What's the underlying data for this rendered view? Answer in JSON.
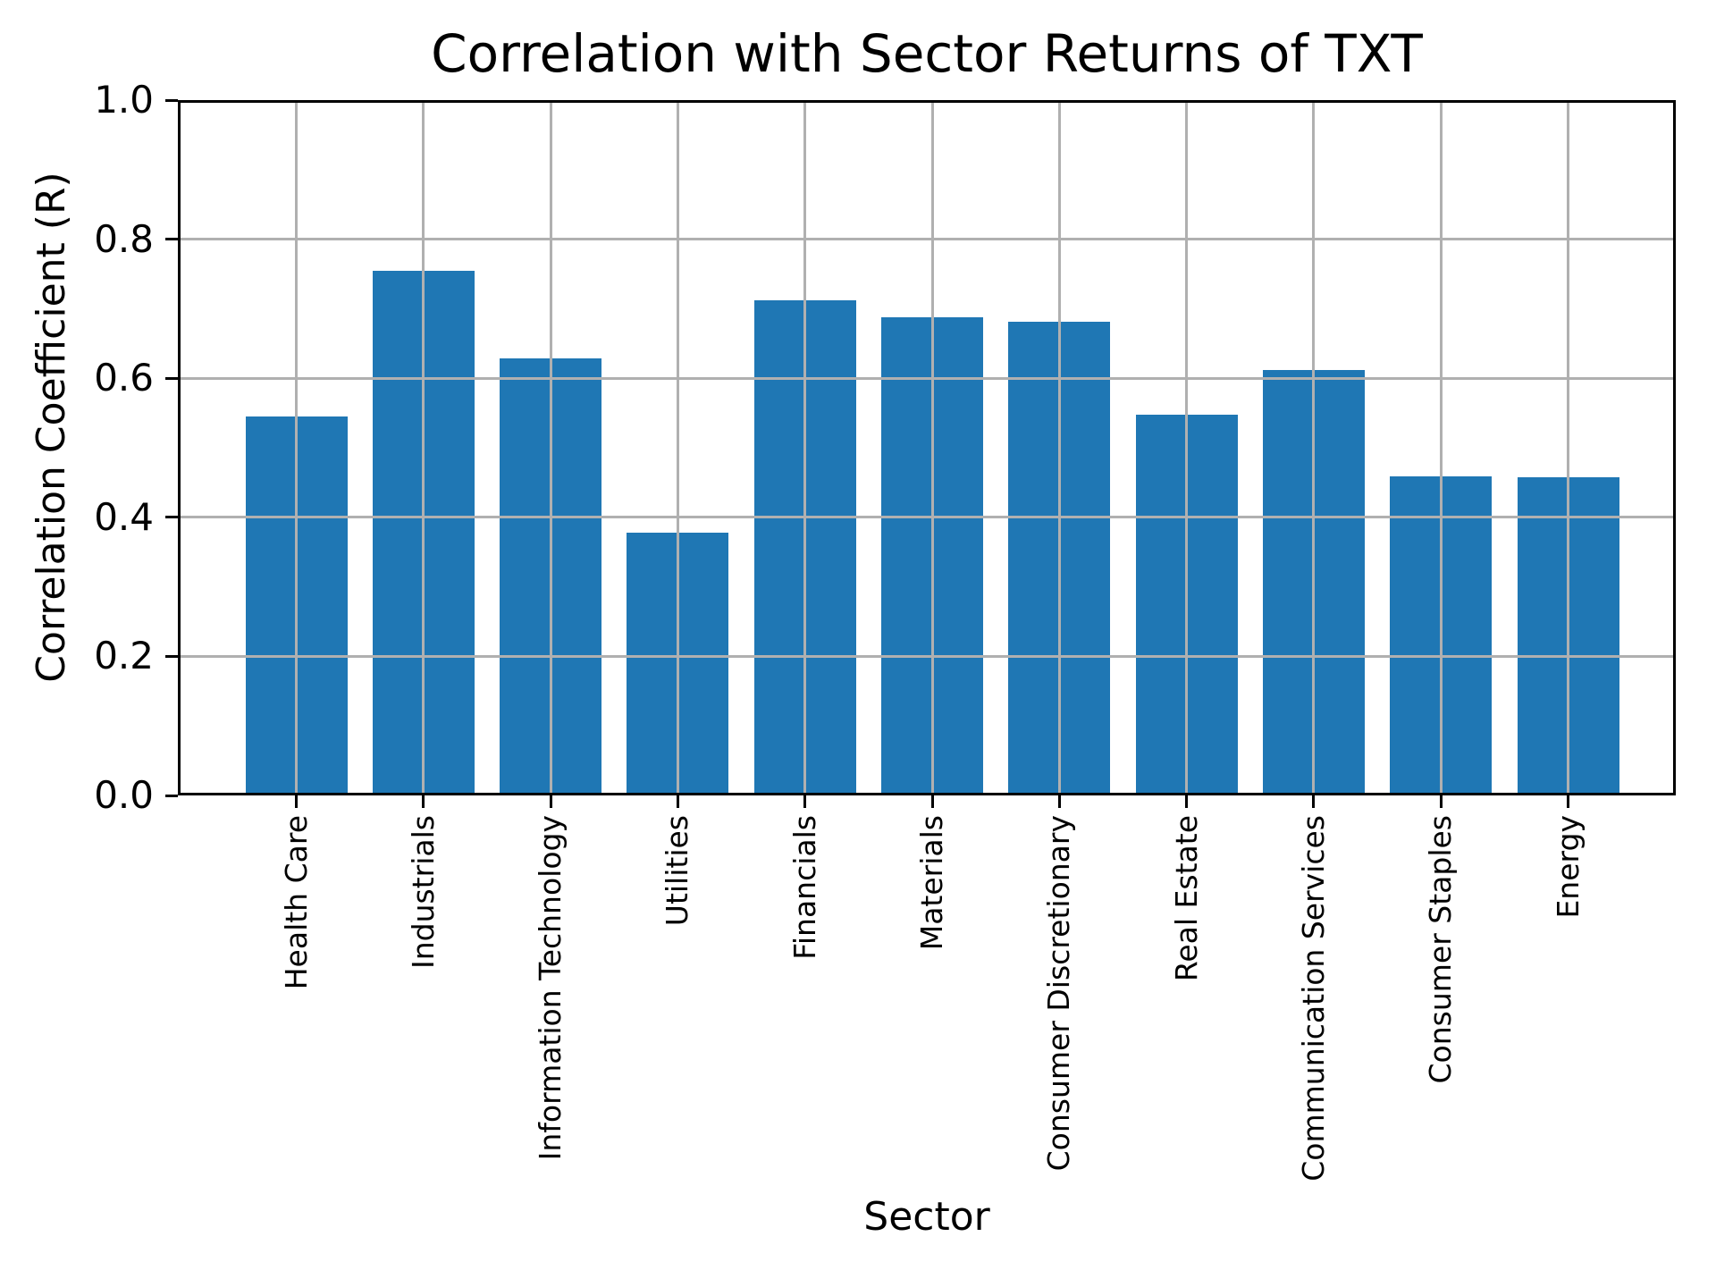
{
  "chart_data": {
    "type": "bar",
    "title": "Correlation with Sector Returns of TXT",
    "xlabel": "Sector",
    "ylabel": "Correlation Coefficient (R)",
    "categories": [
      "Health Care",
      "Industrials",
      "Information Technology",
      "Utilities",
      "Financials",
      "Materials",
      "Consumer Discretionary",
      "Real Estate",
      "Communication Services",
      "Consumer Staples",
      "Energy"
    ],
    "values": [
      0.545,
      0.755,
      0.628,
      0.378,
      0.712,
      0.688,
      0.681,
      0.548,
      0.612,
      0.459,
      0.457
    ],
    "ylim": [
      0.0,
      1.0
    ],
    "yticks": {
      "values": [
        0.0,
        0.2,
        0.4,
        0.6,
        0.8,
        1.0
      ],
      "labels": [
        "0.0",
        "0.2",
        "0.4",
        "0.6",
        "0.8",
        "1.0"
      ]
    },
    "grid": true,
    "legend": false,
    "colors": {
      "bar": "#1f77b4",
      "grid": "#b0b0b0",
      "text": "#000000",
      "background": "#ffffff"
    }
  }
}
